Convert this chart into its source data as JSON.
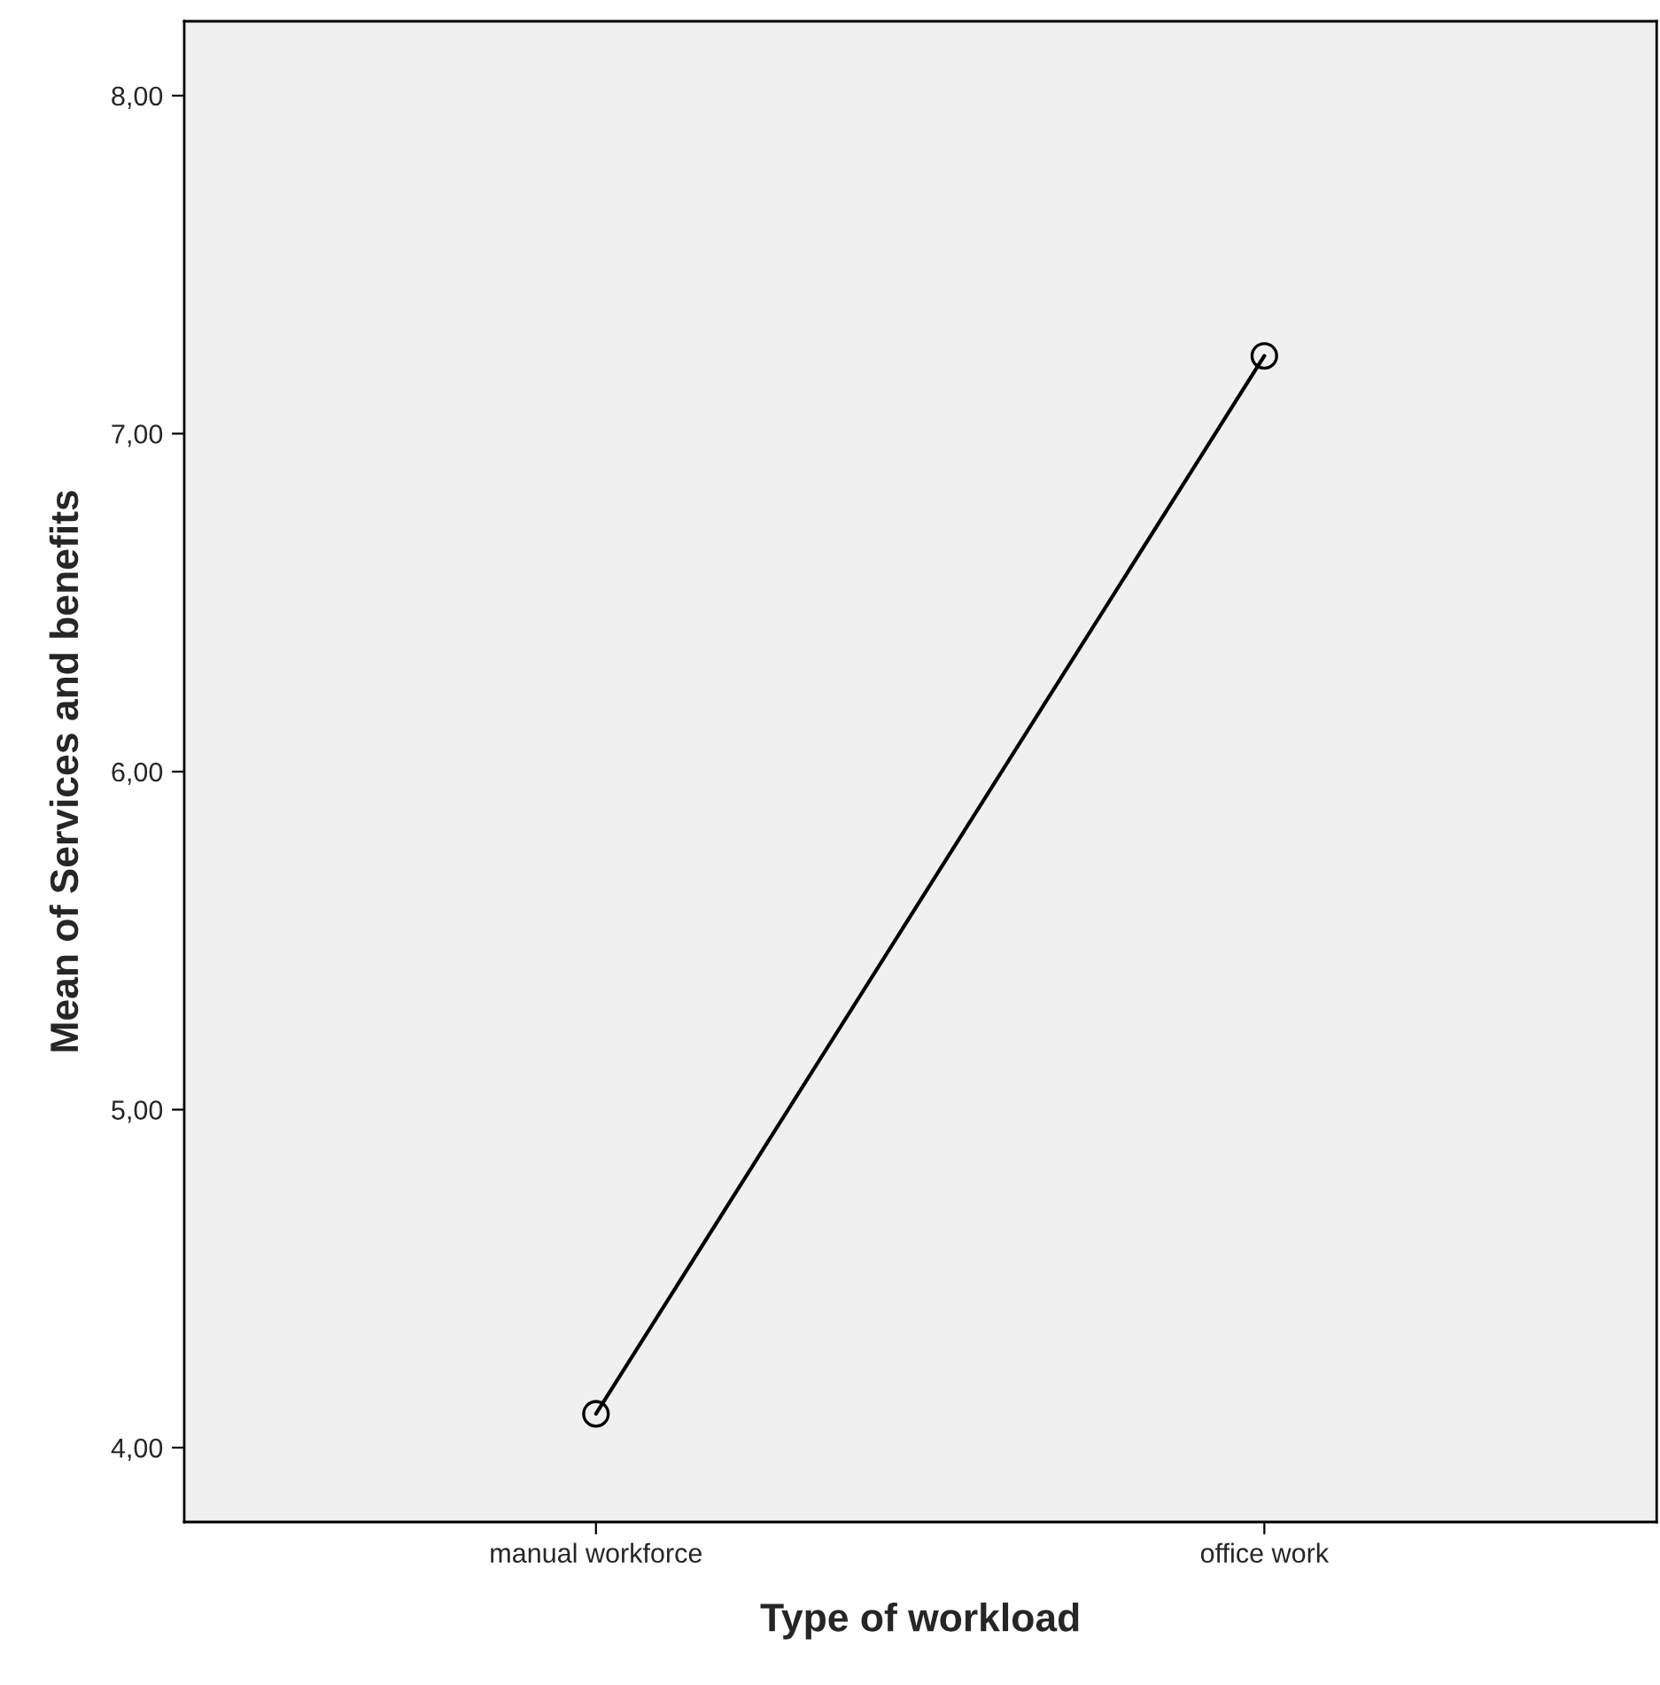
{
  "chart_data": {
    "type": "line",
    "xlabel": "Type of workload",
    "ylabel": "Mean of Services and benefits",
    "categories": [
      "manual workforce",
      "office work"
    ],
    "series": [
      {
        "color": "#000000",
        "values": [
          4.1,
          7.23
        ]
      }
    ],
    "marker": "circle",
    "line_style": "solid",
    "grid": false,
    "legend": false,
    "ylim": [
      3.78,
      8.22
    ],
    "yticks": [
      {
        "value": 4,
        "label": "4,00"
      },
      {
        "value": 5,
        "label": "5,00"
      },
      {
        "value": 6,
        "label": "6,00"
      },
      {
        "value": 7,
        "label": "7,00"
      },
      {
        "value": 8,
        "label": "8,00"
      }
    ]
  }
}
